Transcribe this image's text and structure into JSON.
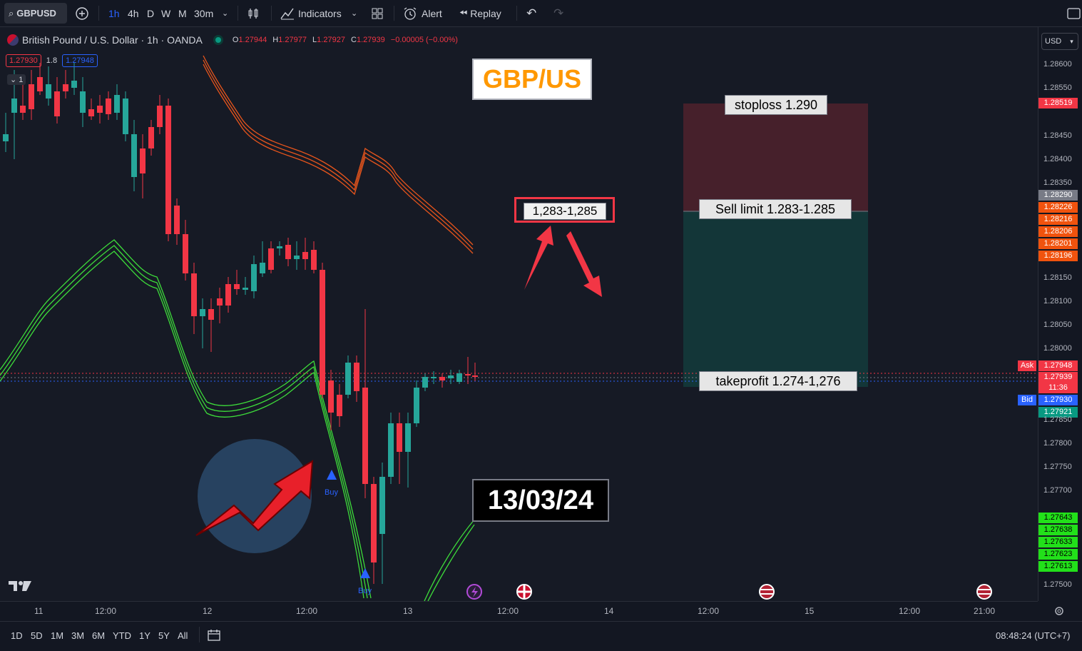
{
  "toolbar": {
    "symbol": "GBPUSD",
    "intervals": [
      "1h",
      "4h",
      "D",
      "W",
      "M",
      "30m"
    ],
    "indicators_label": "Indicators",
    "alert_label": "Alert",
    "replay_label": "Replay"
  },
  "legend": {
    "title": "British Pound / U.S. Dollar · 1h · OANDA",
    "o_label": "O",
    "o_value": "1.27944",
    "h_label": "H",
    "h_value": "1.27977",
    "l_label": "L",
    "l_value": "1.27927",
    "c_label": "C",
    "c_value": "1.27939",
    "change": "−0.00005 (−0.00%)",
    "sell_price": "1.27930",
    "spread": "1.8",
    "buy_price": "1.27948",
    "indicator_count": "1"
  },
  "currency": "USD",
  "annotations": {
    "title_box": "GBP/US",
    "zone_box": "1,283-1,285",
    "date_box": "13/03/24",
    "stoploss": "stoploss 1.290",
    "sell_limit": "Sell limit 1.283-1.285",
    "takeprofit": "takeprofit 1.274-1,276",
    "buy_signal": "Buy"
  },
  "price_scale": {
    "levels": [
      "1.28600",
      "1.28550",
      "1.28450",
      "1.28400",
      "1.28350",
      "1.28150",
      "1.28100",
      "1.28050",
      "1.28000",
      "1.27850",
      "1.27800",
      "1.27750",
      "1.27700",
      "1.27500"
    ],
    "tag_stop": "1.28519",
    "tag_current_grey": "1.28290",
    "tags_orange": [
      "1.28226",
      "1.28216",
      "1.28206",
      "1.28201",
      "1.28196"
    ],
    "ask_label": "Ask",
    "ask_price": "1.27948",
    "last_price": "1.27939",
    "countdown": "11:36",
    "bid_label": "Bid",
    "bid_price": "1.27930",
    "tag_green": "1.27921",
    "tags_lime": [
      "1.27643",
      "1.27638",
      "1.27633",
      "1.27623",
      "1.27613"
    ]
  },
  "time_scale": [
    "11",
    "12:00",
    "12",
    "12:00",
    "13",
    "12:00",
    "14",
    "12:00",
    "15",
    "12:00",
    "21:00"
  ],
  "bottom": {
    "ranges": [
      "1D",
      "5D",
      "1M",
      "3M",
      "6M",
      "YTD",
      "1Y",
      "5Y",
      "All"
    ],
    "clock": "08:48:24 (UTC+7)"
  },
  "colors": {
    "bg": "#161a25",
    "up": "#26a69a",
    "down": "#f23645",
    "band_upper": "#e8551c",
    "band_lower": "#3ddc3a",
    "accent": "#2962ff",
    "title_box_text": "#ff9800"
  }
}
